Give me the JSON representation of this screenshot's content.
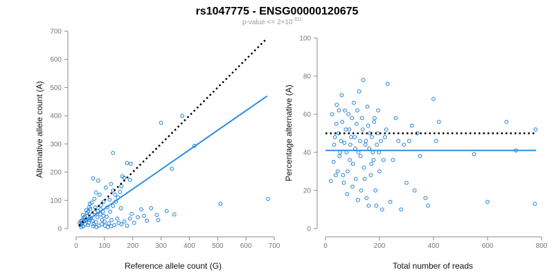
{
  "header": {
    "title": "rs1047775 - ENSG00000120675",
    "subtitle_base": "p-value <= 2×10",
    "subtitle_exp": "-311"
  },
  "colors": {
    "points": "#1f7fd6",
    "fit": "#2e8ee6",
    "reference": "#000000"
  },
  "chart_data": [
    {
      "type": "scatter",
      "title": "",
      "xlabel": "Reference allele count (G)",
      "ylabel": "Alternative allele count (A)",
      "xlim": [
        0,
        700
      ],
      "ylim": [
        0,
        700
      ],
      "xticks": [
        "0",
        "100",
        "200",
        "300",
        "400",
        "500",
        "600",
        "700"
      ],
      "yticks": [
        "0",
        "100",
        "200",
        "300",
        "400",
        "500",
        "600",
        "700"
      ],
      "grid": false,
      "reference_line": {
        "style": "dotted",
        "color": "#000000",
        "points": [
          [
            10,
            10
          ],
          [
            675,
            675
          ]
        ]
      },
      "fit_line": {
        "style": "solid",
        "color": "#2e8ee6",
        "points": [
          [
            10,
            8
          ],
          [
            675,
            470
          ]
        ]
      },
      "points": [
        [
          300,
          375
        ],
        [
          375,
          400
        ],
        [
          418,
          293
        ],
        [
          510,
          88
        ],
        [
          678,
          105
        ],
        [
          338,
          212
        ],
        [
          130,
          268
        ],
        [
          180,
          232
        ],
        [
          193,
          230
        ],
        [
          170,
          180
        ],
        [
          163,
          185
        ],
        [
          60,
          178
        ],
        [
          78,
          170
        ],
        [
          123,
          158
        ],
        [
          190,
          172
        ],
        [
          230,
          68
        ],
        [
          265,
          72
        ],
        [
          320,
          62
        ],
        [
          347,
          50
        ],
        [
          285,
          48
        ],
        [
          240,
          45
        ],
        [
          218,
          40
        ],
        [
          196,
          52
        ],
        [
          190,
          35
        ],
        [
          145,
          35
        ],
        [
          158,
          72
        ],
        [
          148,
          110
        ],
        [
          138,
          120
        ],
        [
          118,
          102
        ],
        [
          97,
          95
        ],
        [
          88,
          82
        ],
        [
          83,
          120
        ],
        [
          70,
          128
        ],
        [
          64,
          105
        ],
        [
          55,
          92
        ],
        [
          48,
          88
        ],
        [
          42,
          60
        ],
        [
          40,
          45
        ],
        [
          35,
          30
        ],
        [
          28,
          25
        ],
        [
          20,
          18
        ],
        [
          15,
          12
        ],
        [
          18,
          5
        ],
        [
          25,
          8
        ],
        [
          32,
          15
        ],
        [
          45,
          20
        ],
        [
          52,
          35
        ],
        [
          58,
          28
        ],
        [
          62,
          15
        ],
        [
          70,
          22
        ],
        [
          75,
          40
        ],
        [
          85,
          50
        ],
        [
          92,
          30
        ],
        [
          100,
          25
        ],
        [
          108,
          42
        ],
        [
          115,
          18
        ],
        [
          125,
          30
        ],
        [
          135,
          12
        ],
        [
          150,
          20
        ],
        [
          160,
          15
        ],
        [
          170,
          25
        ],
        [
          180,
          10
        ],
        [
          205,
          20
        ],
        [
          250,
          28
        ],
        [
          290,
          30
        ],
        [
          95,
          60
        ],
        [
          110,
          75
        ],
        [
          120,
          60
        ],
        [
          130,
          80
        ],
        [
          140,
          95
        ],
        [
          155,
          130
        ],
        [
          160,
          150
        ],
        [
          105,
          145
        ],
        [
          130,
          135
        ],
        [
          68,
          75
        ],
        [
          50,
          70
        ],
        [
          38,
          55
        ],
        [
          30,
          42
        ],
        [
          22,
          30
        ],
        [
          12,
          20
        ],
        [
          24,
          48
        ],
        [
          46,
          32
        ],
        [
          56,
          48
        ],
        [
          66,
          58
        ],
        [
          76,
          62
        ],
        [
          86,
          68
        ],
        [
          96,
          45
        ],
        [
          46,
          75
        ],
        [
          36,
          65
        ],
        [
          26,
          38
        ],
        [
          16,
          26
        ],
        [
          80,
          10
        ],
        [
          72,
          5
        ],
        [
          60,
          8
        ],
        [
          42,
          12
        ],
        [
          90,
          15
        ],
        [
          102,
          10
        ],
        [
          112,
          5
        ],
        [
          124,
          8
        ]
      ]
    },
    {
      "type": "scatter",
      "title": "",
      "xlabel": "Total number of reads",
      "ylabel": "Percentage alternative (A)",
      "xlim": [
        0,
        800
      ],
      "ylim": [
        0,
        100
      ],
      "xticks": [
        "0",
        "200",
        "400",
        "600",
        "800"
      ],
      "yticks": [
        "0",
        "20",
        "40",
        "60",
        "80",
        "100"
      ],
      "grid": false,
      "reference_line": {
        "style": "dotted",
        "color": "#000000",
        "points": [
          [
            0,
            50
          ],
          [
            780,
            50
          ]
        ]
      },
      "fit_line": {
        "style": "solid",
        "color": "#2e8ee6",
        "points": [
          [
            0,
            41
          ],
          [
            780,
            41
          ]
        ]
      },
      "points": [
        [
          20,
          25
        ],
        [
          30,
          35
        ],
        [
          35,
          48
        ],
        [
          40,
          55
        ],
        [
          45,
          30
        ],
        [
          50,
          62
        ],
        [
          55,
          40
        ],
        [
          60,
          70
        ],
        [
          65,
          28
        ],
        [
          70,
          45
        ],
        [
          75,
          52
        ],
        [
          80,
          18
        ],
        [
          85,
          60
        ],
        [
          90,
          36
        ],
        [
          95,
          48
        ],
        [
          100,
          22
        ],
        [
          105,
          66
        ],
        [
          110,
          42
        ],
        [
          115,
          55
        ],
        [
          120,
          15
        ],
        [
          125,
          72
        ],
        [
          130,
          38
        ],
        [
          135,
          58
        ],
        [
          140,
          78
        ],
        [
          145,
          26
        ],
        [
          150,
          46
        ],
        [
          155,
          64
        ],
        [
          160,
          12
        ],
        [
          165,
          50
        ],
        [
          170,
          34
        ],
        [
          175,
          40
        ],
        [
          180,
          56
        ],
        [
          185,
          20
        ],
        [
          190,
          44
        ],
        [
          195,
          62
        ],
        [
          200,
          30
        ],
        [
          210,
          10
        ],
        [
          220,
          48
        ],
        [
          230,
          76
        ],
        [
          240,
          14
        ],
        [
          250,
          36
        ],
        [
          260,
          58
        ],
        [
          270,
          46
        ],
        [
          280,
          10
        ],
        [
          290,
          44
        ],
        [
          300,
          24
        ],
        [
          310,
          46
        ],
        [
          320,
          54
        ],
        [
          330,
          20
        ],
        [
          340,
          50
        ],
        [
          350,
          38
        ],
        [
          370,
          16
        ],
        [
          380,
          12
        ],
        [
          400,
          68
        ],
        [
          410,
          46
        ],
        [
          420,
          56
        ],
        [
          550,
          39
        ],
        [
          600,
          14
        ],
        [
          670,
          56
        ],
        [
          705,
          41
        ],
        [
          775,
          13
        ],
        [
          778,
          52
        ],
        [
          25,
          60
        ],
        [
          32,
          44
        ],
        [
          38,
          28
        ],
        [
          42,
          65
        ],
        [
          48,
          50
        ],
        [
          52,
          38
        ],
        [
          58,
          46
        ],
        [
          62,
          56
        ],
        [
          68,
          24
        ],
        [
          72,
          62
        ],
        [
          78,
          40
        ],
        [
          82,
          30
        ],
        [
          88,
          52
        ],
        [
          92,
          44
        ],
        [
          98,
          58
        ],
        [
          102,
          34
        ],
        [
          108,
          48
        ],
        [
          112,
          26
        ],
        [
          118,
          62
        ],
        [
          122,
          40
        ],
        [
          128,
          46
        ],
        [
          132,
          20
        ],
        [
          138,
          52
        ],
        [
          142,
          32
        ],
        [
          148,
          44
        ],
        [
          152,
          16
        ],
        [
          158,
          54
        ],
        [
          162,
          42
        ],
        [
          168,
          28
        ],
        [
          172,
          48
        ],
        [
          178,
          36
        ],
        [
          182,
          58
        ],
        [
          188,
          12
        ],
        [
          194,
          50
        ],
        [
          198,
          40
        ],
        [
          205,
          46
        ],
        [
          215,
          36
        ],
        [
          225,
          52
        ]
      ]
    }
  ]
}
